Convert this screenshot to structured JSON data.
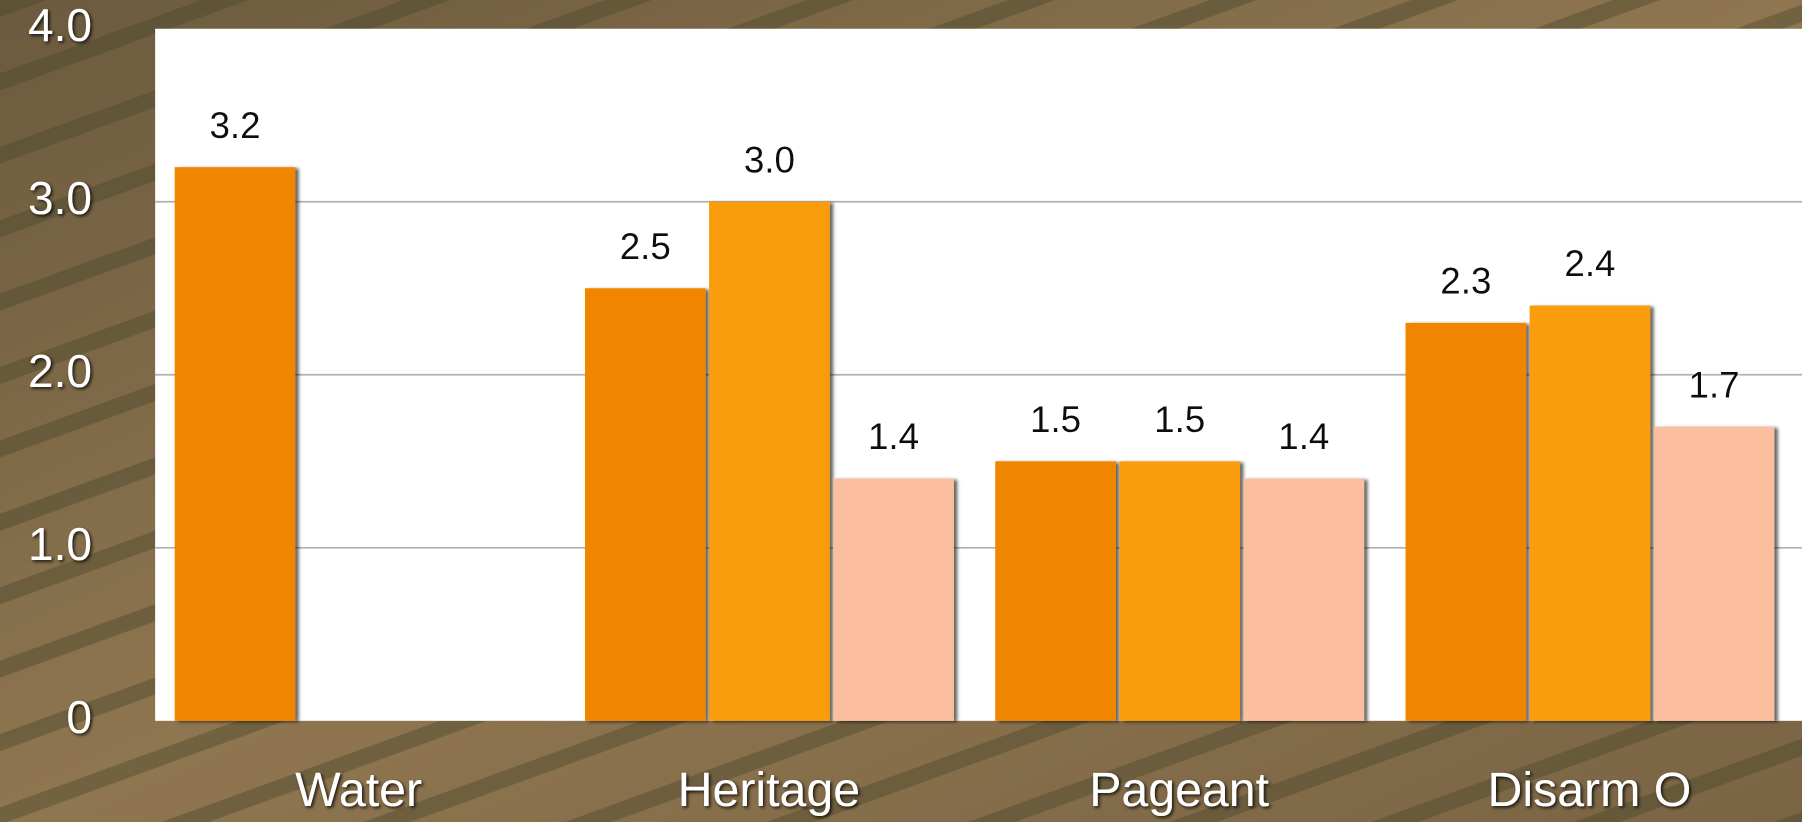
{
  "chart_data": {
    "type": "bar",
    "categories": [
      "Water",
      "Heritage",
      "Pageant",
      "Disarm O"
    ],
    "series": [
      {
        "color": "#f08500",
        "values": [
          3.2,
          2.5,
          1.5,
          2.3
        ],
        "value_labels": [
          "3.2",
          "2.5",
          "1.5",
          "2.3"
        ]
      },
      {
        "color": "#fb9c0a",
        "values": [
          null,
          3.0,
          1.5,
          2.4
        ],
        "value_labels": [
          null,
          "3.0",
          "1.5",
          "2.4"
        ]
      },
      {
        "color": "#fbbfa0",
        "values": [
          null,
          1.4,
          1.4,
          1.7
        ],
        "value_labels": [
          null,
          "1.4",
          "1.4",
          "1.7"
        ]
      }
    ],
    "ylim": [
      0,
      4
    ],
    "yticks": [
      0,
      {
        "value": 1,
        "label": "1.0"
      },
      {
        "value": 2,
        "label": "2.0"
      },
      {
        "value": 3,
        "label": "3.0"
      },
      {
        "value": 4,
        "label": "4.0"
      }
    ],
    "grid": true
  }
}
